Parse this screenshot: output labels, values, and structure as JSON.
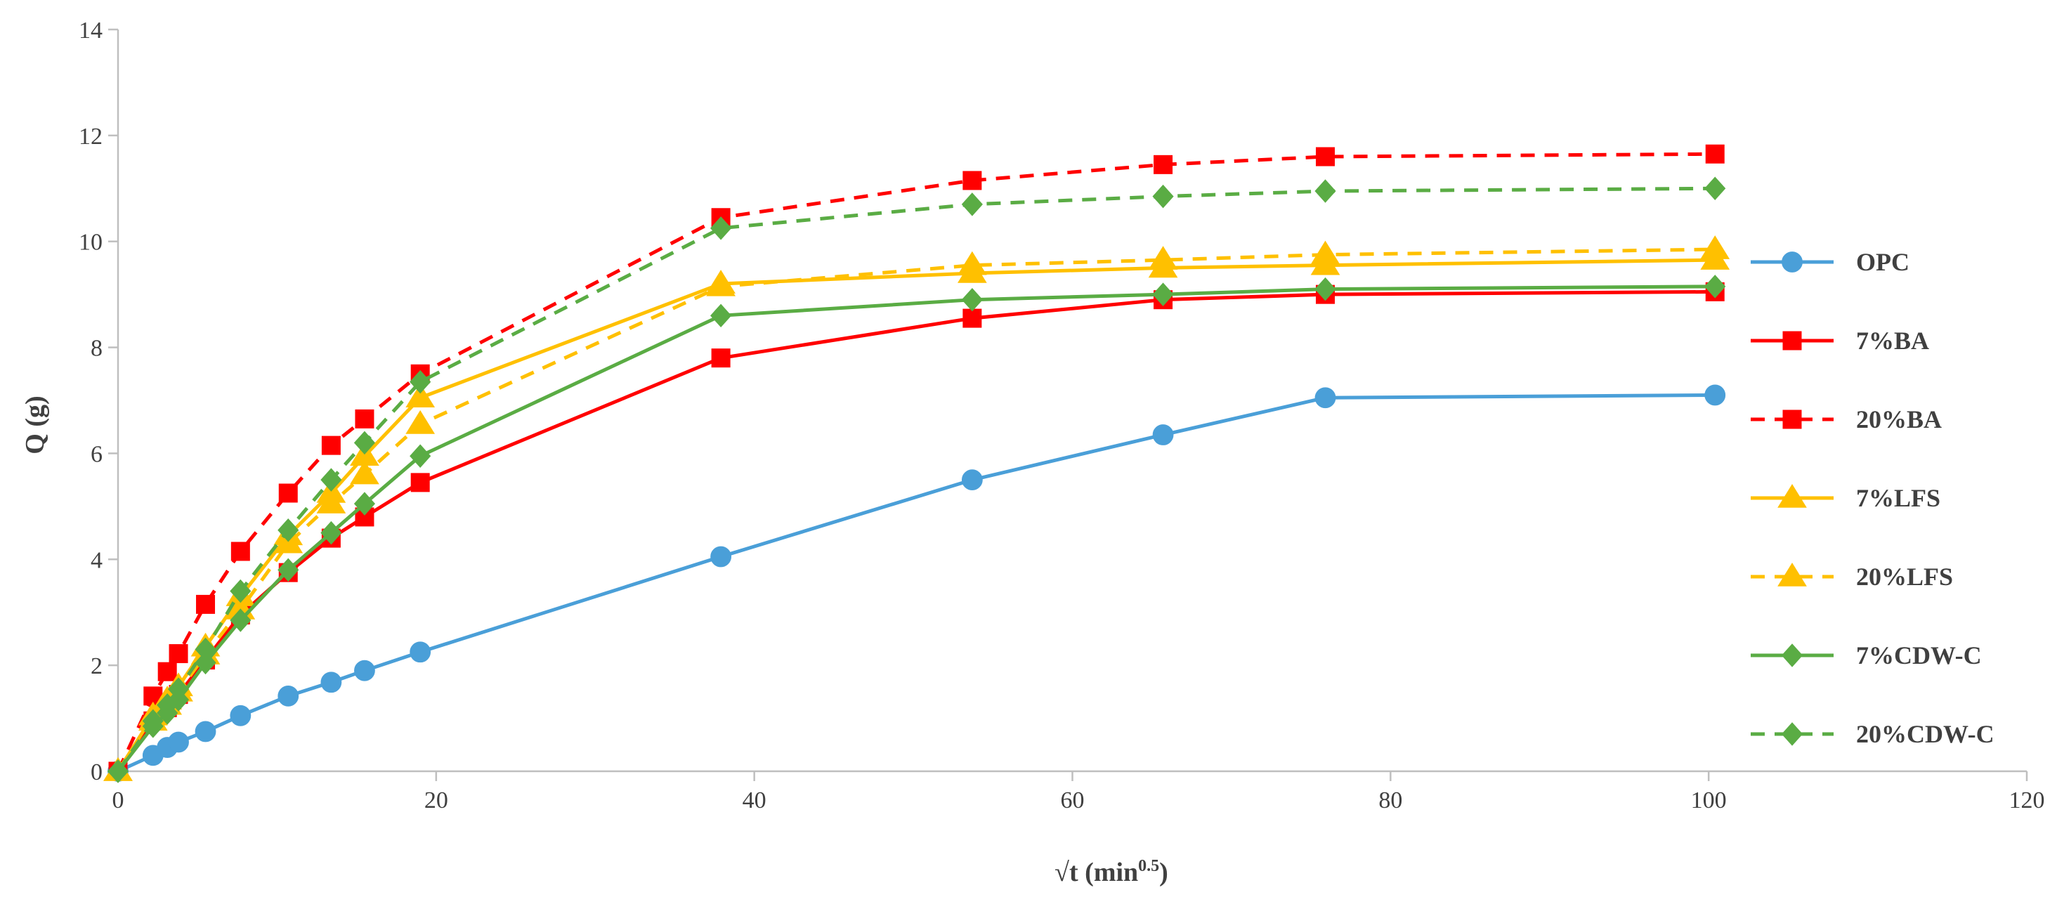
{
  "chart_data": {
    "type": "line",
    "title": "",
    "xlabel": "√t (min",
    "xlabel_sup": "0.5",
    "xlabel_close": ")",
    "ylabel": "Q (g)",
    "xlim": [
      0,
      120
    ],
    "ylim": [
      0,
      14
    ],
    "xticks": [
      0,
      20,
      40,
      60,
      80,
      100,
      120
    ],
    "yticks": [
      0,
      2,
      4,
      6,
      8,
      10,
      12,
      14
    ],
    "grid": false,
    "legend_position": "right",
    "colors": {
      "axis": "#bfbfbf",
      "text": "#404040",
      "blue": "#4a9fd8",
      "red": "#ff0000",
      "yellow": "#ffc000",
      "green": "#5aac44"
    },
    "series": [
      {
        "name": "OPC",
        "color": "#4a9fd8",
        "dash": "solid",
        "marker": "circle",
        "x": [
          0,
          2.2,
          3.1,
          3.8,
          5.5,
          7.7,
          10.7,
          13.4,
          15.5,
          19,
          37.9,
          53.7,
          65.7,
          75.9,
          100.4
        ],
        "y": [
          0,
          0.3,
          0.45,
          0.55,
          0.75,
          1.05,
          1.42,
          1.68,
          1.9,
          2.25,
          4.05,
          5.5,
          6.35,
          7.05,
          7.1
        ]
      },
      {
        "name": "7%BA",
        "color": "#ff0000",
        "dash": "solid",
        "marker": "square",
        "x": [
          0,
          2.2,
          3.1,
          3.8,
          5.5,
          7.7,
          10.7,
          13.4,
          15.5,
          19,
          37.9,
          53.7,
          65.7,
          75.9,
          100.4
        ],
        "y": [
          0,
          0.95,
          1.2,
          1.45,
          2.1,
          2.95,
          3.75,
          4.4,
          4.8,
          5.45,
          7.8,
          8.55,
          8.9,
          9.0,
          9.05
        ]
      },
      {
        "name": "20%BA",
        "color": "#ff0000",
        "dash": "dashed",
        "marker": "square",
        "x": [
          0,
          2.2,
          3.1,
          3.8,
          5.5,
          7.7,
          10.7,
          13.4,
          15.5,
          19,
          37.9,
          53.7,
          65.7,
          75.9,
          100.4
        ],
        "y": [
          0,
          1.42,
          1.88,
          2.22,
          3.15,
          4.15,
          5.25,
          6.15,
          6.65,
          7.5,
          10.45,
          11.15,
          11.45,
          11.6,
          11.65
        ]
      },
      {
        "name": "7%LFS",
        "color": "#ffc000",
        "dash": "solid",
        "marker": "triangle",
        "x": [
          0,
          2.2,
          3.1,
          3.8,
          5.5,
          7.7,
          10.7,
          13.4,
          15.5,
          19,
          37.9,
          53.7,
          65.7,
          75.9,
          100.4
        ],
        "y": [
          0,
          1.05,
          1.35,
          1.6,
          2.35,
          3.3,
          4.45,
          5.25,
          5.95,
          7.05,
          9.2,
          9.4,
          9.5,
          9.55,
          9.65
        ]
      },
      {
        "name": "20%LFS",
        "color": "#ffc000",
        "dash": "dashed",
        "marker": "triangle",
        "x": [
          0,
          2.2,
          3.1,
          3.8,
          5.5,
          7.7,
          10.7,
          13.4,
          15.5,
          19,
          37.9,
          53.7,
          65.7,
          75.9,
          100.4
        ],
        "y": [
          0,
          0.95,
          1.25,
          1.5,
          2.2,
          3.05,
          4.3,
          5.05,
          5.6,
          6.55,
          9.15,
          9.55,
          9.65,
          9.75,
          9.85
        ]
      },
      {
        "name": "7%CDW-C",
        "color": "#5aac44",
        "dash": "solid",
        "marker": "diamond",
        "x": [
          0,
          2.2,
          3.1,
          3.8,
          5.5,
          7.7,
          10.7,
          13.4,
          15.5,
          19,
          37.9,
          53.7,
          65.7,
          75.9,
          100.4
        ],
        "y": [
          0,
          0.85,
          1.1,
          1.35,
          2.05,
          2.85,
          3.8,
          4.5,
          5.05,
          5.95,
          8.6,
          8.9,
          9.0,
          9.1,
          9.15
        ]
      },
      {
        "name": "20%CDW-C",
        "color": "#5aac44",
        "dash": "dashed",
        "marker": "diamond",
        "x": [
          0,
          2.2,
          3.1,
          3.8,
          5.5,
          7.7,
          10.7,
          13.4,
          15.5,
          19,
          37.9,
          53.7,
          65.7,
          75.9,
          100.4
        ],
        "y": [
          0,
          0.95,
          1.25,
          1.55,
          2.3,
          3.4,
          4.55,
          5.5,
          6.2,
          7.35,
          10.25,
          10.7,
          10.85,
          10.95,
          11.0
        ]
      }
    ]
  }
}
